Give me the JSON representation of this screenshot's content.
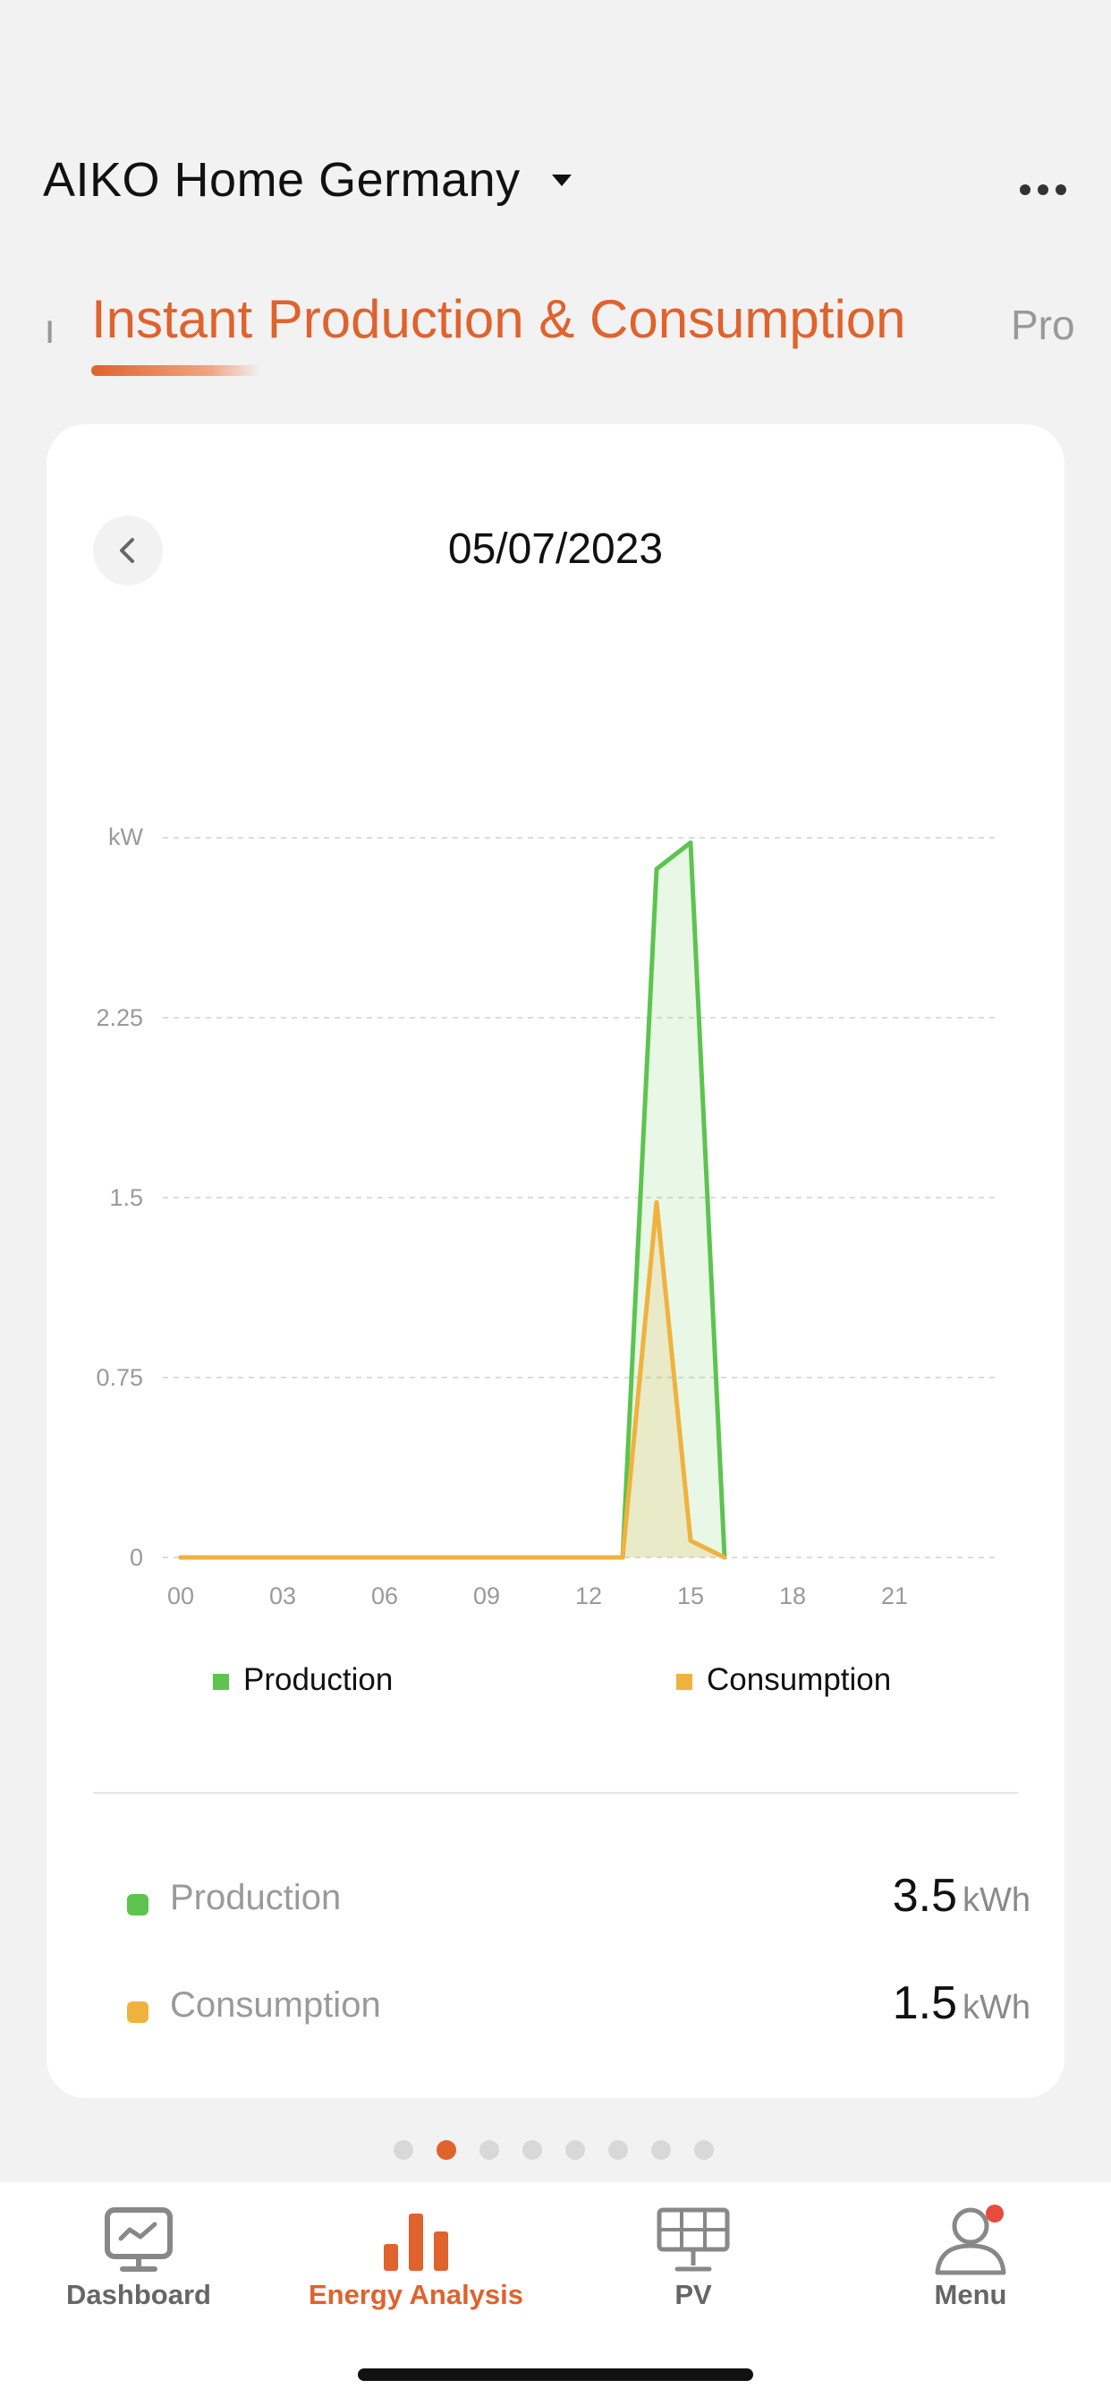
{
  "header": {
    "title": "AIKO Home Germany"
  },
  "tabs": {
    "prev_partial": "ı",
    "active": "Instant Production & Consumption",
    "next_partial": "Pro"
  },
  "card": {
    "date": "05/07/2023"
  },
  "chart_data": {
    "type": "area",
    "y_unit": "kW",
    "y_ticks": [
      "2.25",
      "1.5",
      "0.75",
      "0"
    ],
    "ylim": [
      0,
      3
    ],
    "x_ticks": [
      "00",
      "03",
      "06",
      "09",
      "12",
      "15",
      "18",
      "21"
    ],
    "xlim": [
      0,
      24
    ],
    "grid": true,
    "legend_position": "bottom",
    "series": [
      {
        "name": "Production",
        "color": "#5cc44f",
        "x": [
          0,
          1,
          2,
          3,
          4,
          5,
          6,
          7,
          8,
          9,
          10,
          11,
          12,
          13,
          14,
          15,
          16
        ],
        "y": [
          0,
          0,
          0,
          0,
          0,
          0,
          0,
          0,
          0,
          0,
          0,
          0,
          0,
          0,
          2.87,
          2.98,
          0
        ]
      },
      {
        "name": "Consumption",
        "color": "#f0b23e",
        "x": [
          0,
          1,
          2,
          3,
          4,
          5,
          6,
          7,
          8,
          9,
          10,
          11,
          12,
          13,
          14,
          15,
          16
        ],
        "y": [
          0,
          0,
          0,
          0,
          0,
          0,
          0,
          0,
          0,
          0,
          0,
          0,
          0,
          0,
          1.48,
          0.07,
          0
        ]
      }
    ]
  },
  "summary": [
    {
      "label": "Production",
      "value": "3.5",
      "unit": "kWh",
      "color": "#5cc44f"
    },
    {
      "label": "Consumption",
      "value": "1.5",
      "unit": "kWh",
      "color": "#f0b23e"
    }
  ],
  "pager": {
    "count": 8,
    "active_index": 1
  },
  "nav": {
    "items": [
      {
        "label": "Dashboard",
        "icon": "dashboard-icon"
      },
      {
        "label": "Energy Analysis",
        "icon": "bar-chart-icon"
      },
      {
        "label": "PV",
        "icon": "solar-panel-icon"
      },
      {
        "label": "Menu",
        "icon": "user-icon"
      }
    ],
    "active_index": 1
  },
  "colors": {
    "accent": "#e0622c",
    "production": "#5cc44f",
    "consumption": "#f0b23e"
  }
}
